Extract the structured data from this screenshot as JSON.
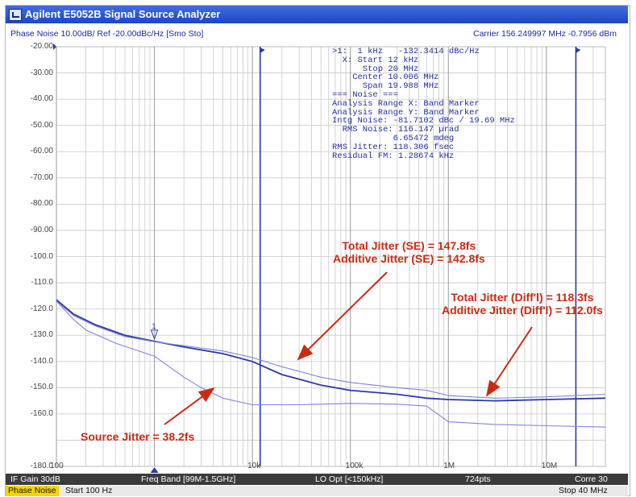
{
  "window": {
    "title": "Agilent E5052B Signal Source Analyzer"
  },
  "trace_header": {
    "left": "Phase Noise 10.00dB/ Ref -20.00dBc/Hz [Smo Sto]",
    "right": "Carrier 156.249997 MHz    -0.7956 dBm"
  },
  "marker": {
    "lines": [
      ">1:  1 kHz   -132.3414 dBc/Hz",
      "  X: Start 12 kHz",
      "      Stop 20 MHz",
      "    Center 10.006 MHz",
      "      Span 19.988 MHz",
      "=== Noise ===",
      "Analysis Range X: Band Marker",
      "Analysis Range Y: Band Marker",
      "Intg Noise: -81.7102 dBc / 19.69 MHz",
      "  RMS Noise: 116.147 µrad",
      "            6.65472 mdeg",
      "RMS Jitter: 118.306 fsec",
      "Residual FM: 1.28674 kHz"
    ]
  },
  "annotations": {
    "se_total": "Total Jitter (SE) = 147.8fs",
    "se_additive": "Additive Jitter (SE) = 142.8fs",
    "diff_total": "Total Jitter (Diff'l) = 118.3fs",
    "diff_additive": "Additive Jitter (Diff'l) = 112.0fs",
    "source": "Source Jitter = 38.2fs"
  },
  "status_bar": {
    "if_gain": "IF Gain 30dB",
    "freq_band": "Freq Band [99M-1.5GHz]",
    "lo_opt": "LO Opt [<150kHz]",
    "points": "724pts",
    "corr": "Corre 30"
  },
  "bottom_bar": {
    "mode": "Phase Noise",
    "start": "Start 100 Hz",
    "stop": "Stop 40 MHz"
  },
  "colors": {
    "title_bar": "#2450d0",
    "trace": "#2b3aa6",
    "trace_light": "#7f85e0",
    "annotation": "#cc2a10",
    "grid": "#c9c9c9"
  },
  "chart_data": {
    "type": "line",
    "xscale": "log",
    "xlim": [
      100,
      40000000
    ],
    "ylim": [
      -180,
      -20
    ],
    "y_ticks": [
      "-20.00",
      "-30.00",
      "-40.00",
      "-50.00",
      "-60.00",
      "-70.00",
      "-80.00",
      "-90.00",
      "-100.0",
      "-110.0",
      "-120.0",
      "-130.0",
      "-140.0",
      "-150.0",
      "-160.0",
      "-180.0"
    ],
    "x_ticks": [
      {
        "value": 100,
        "label": "100"
      },
      {
        "value": 10000,
        "label": "10k"
      },
      {
        "value": 100000,
        "label": "100k"
      },
      {
        "value": 1000000,
        "label": "1M"
      },
      {
        "value": 10000000,
        "label": "10M"
      }
    ],
    "band_markers_hz": [
      12000,
      20000000
    ],
    "marker_1_hz": 1000,
    "series": [
      {
        "style": "dark",
        "points": [
          [
            100,
            -116.5
          ],
          [
            150,
            -122
          ],
          [
            250,
            -126
          ],
          [
            500,
            -130
          ],
          [
            1000,
            -132.3
          ],
          [
            2000,
            -134.5
          ],
          [
            5000,
            -137
          ],
          [
            10000,
            -140
          ],
          [
            20000,
            -145
          ],
          [
            50000,
            -149
          ],
          [
            100000,
            -151
          ],
          [
            300000,
            -152.5
          ],
          [
            600000,
            -154
          ],
          [
            1000000,
            -154.5
          ],
          [
            3000000,
            -155
          ],
          [
            10000000,
            -154.5
          ],
          [
            40000000,
            -154
          ]
        ]
      },
      {
        "style": "light",
        "points": [
          [
            100,
            -117
          ],
          [
            150,
            -122.5
          ],
          [
            250,
            -126.5
          ],
          [
            500,
            -130.5
          ],
          [
            1000,
            -132.5
          ],
          [
            2000,
            -134
          ],
          [
            5000,
            -136
          ],
          [
            10000,
            -138.5
          ],
          [
            20000,
            -142
          ],
          [
            50000,
            -146
          ],
          [
            100000,
            -148
          ],
          [
            300000,
            -150
          ],
          [
            600000,
            -151
          ],
          [
            1000000,
            -153
          ],
          [
            3000000,
            -154
          ],
          [
            10000000,
            -153.5
          ],
          [
            40000000,
            -152.5
          ]
        ]
      },
      {
        "style": "light",
        "points": [
          [
            100,
            -117
          ],
          [
            150,
            -124
          ],
          [
            200,
            -128
          ],
          [
            400,
            -133
          ],
          [
            1000,
            -138
          ],
          [
            2000,
            -146
          ],
          [
            3000,
            -150
          ],
          [
            5000,
            -154
          ],
          [
            10000,
            -156.5
          ],
          [
            30000,
            -156.5
          ],
          [
            100000,
            -156
          ],
          [
            300000,
            -156.3
          ],
          [
            600000,
            -157
          ],
          [
            1000000,
            -163
          ],
          [
            3000000,
            -164
          ],
          [
            10000000,
            -164.5
          ],
          [
            40000000,
            -165
          ]
        ]
      }
    ]
  }
}
